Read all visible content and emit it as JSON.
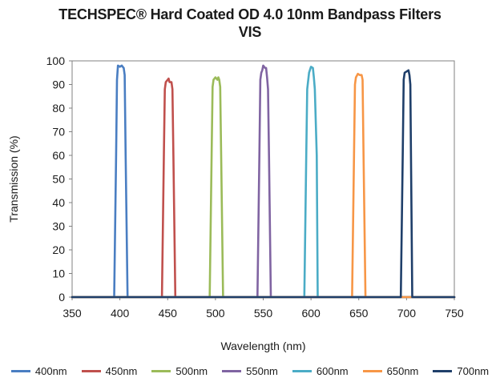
{
  "chart_data": {
    "type": "line",
    "title_line1": "TECHSPEC® Hard Coated OD 4.0 10nm Bandpass Filters",
    "title_line2": "VIS",
    "xlabel": "Wavelength (nm)",
    "ylabel": "Transmission (%)",
    "xlim": [
      350,
      750
    ],
    "ylim": [
      0,
      100
    ],
    "xticks": [
      350,
      400,
      450,
      500,
      550,
      600,
      650,
      700,
      750
    ],
    "yticks": [
      0,
      10,
      20,
      30,
      40,
      50,
      60,
      70,
      80,
      90,
      100
    ],
    "grid": false,
    "legend_position": "bottom",
    "series": [
      {
        "name": "400nm",
        "color": "#4a7ec2",
        "x": [
          350,
          394,
          396,
          397,
          398,
          400,
          402,
          404,
          405,
          406,
          408,
          750
        ],
        "y": [
          0,
          0,
          60,
          92,
          98,
          97.5,
          98,
          97,
          94,
          60,
          0,
          0
        ]
      },
      {
        "name": "450nm",
        "color": "#c0504d",
        "x": [
          350,
          444,
          446,
          447,
          448,
          450,
          451,
          452,
          454,
          455,
          456,
          458,
          750
        ],
        "y": [
          0,
          0,
          60,
          88,
          91,
          92,
          92.5,
          91,
          91,
          88,
          60,
          0,
          0
        ]
      },
      {
        "name": "500nm",
        "color": "#9bbb59",
        "x": [
          350,
          494,
          496,
          497,
          498,
          500,
          502,
          503,
          504,
          505,
          506,
          508,
          750
        ],
        "y": [
          0,
          0,
          60,
          89,
          92,
          93,
          92,
          93,
          92,
          89,
          60,
          0,
          0
        ]
      },
      {
        "name": "550nm",
        "color": "#8064a2",
        "x": [
          350,
          544,
          546,
          547,
          548,
          549,
          550,
          552,
          553,
          554,
          555,
          556,
          558,
          750
        ],
        "y": [
          0,
          0,
          60,
          92,
          95,
          96,
          98,
          97,
          97,
          93,
          88,
          60,
          0,
          0
        ]
      },
      {
        "name": "600nm",
        "color": "#4bacc6",
        "x": [
          350,
          593,
          595,
          596,
          598,
          600,
          602,
          603,
          604,
          606,
          607,
          750
        ],
        "y": [
          0,
          0,
          60,
          88,
          95,
          97.5,
          97,
          93,
          88,
          60,
          0,
          0
        ]
      },
      {
        "name": "650nm",
        "color": "#f79646",
        "x": [
          350,
          643,
          645,
          646,
          647,
          649,
          651,
          653,
          654,
          655,
          657,
          750
        ],
        "y": [
          0,
          0,
          60,
          90,
          93,
          94.5,
          94,
          94,
          92,
          60,
          0,
          0
        ]
      },
      {
        "name": "700nm",
        "color": "#1f3f6a",
        "x": [
          350,
          694,
          696,
          697,
          698,
          700,
          702,
          703,
          704,
          706,
          750
        ],
        "y": [
          0,
          0,
          60,
          92,
          95,
          95.5,
          96,
          94,
          90,
          0,
          0
        ]
      }
    ]
  }
}
